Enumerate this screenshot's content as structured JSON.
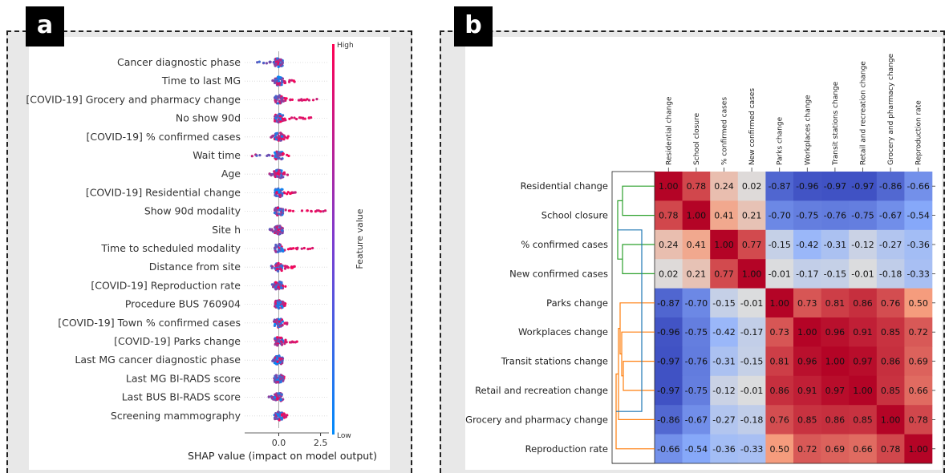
{
  "panel_a_letter": "a",
  "panel_b_letter": "b",
  "chart_data": [
    {
      "type": "scatter",
      "subtype": "shap-beeswarm",
      "features": [
        "Cancer diagnostic phase",
        "Time to last MG",
        "[COVID-19] Grocery and pharmacy change",
        "No show 90d",
        "[COVID-19] % confirmed cases",
        "Wait time",
        "Age",
        "[COVID-19] Residential change",
        "Show 90d modality",
        "Site h",
        "Time to scheduled modality",
        "Distance from site",
        "[COVID-19] Reproduction rate",
        "Procedure BUS 760904",
        "[COVID-19] Town % confirmed cases",
        "[COVID-19] Parks change",
        "Last MG cancer diagnostic phase",
        "Last MG BI-RADS score",
        "Last BUS BI-RADS score",
        "Screening mammography"
      ],
      "shap_ranges": [
        [
          -1.3,
          0.4
        ],
        [
          -0.5,
          1.0
        ],
        [
          -0.2,
          2.3
        ],
        [
          -0.2,
          2.0
        ],
        [
          -0.5,
          0.6
        ],
        [
          -1.6,
          0.8
        ],
        [
          -0.6,
          0.6
        ],
        [
          -0.3,
          1.0
        ],
        [
          -0.2,
          2.9
        ],
        [
          -0.6,
          0.3
        ],
        [
          -0.1,
          2.1
        ],
        [
          -0.7,
          1.0
        ],
        [
          -0.4,
          0.4
        ],
        [
          -0.2,
          0.4
        ],
        [
          -0.4,
          0.5
        ],
        [
          -0.3,
          1.1
        ],
        [
          -0.4,
          0.3
        ],
        [
          -0.3,
          0.4
        ],
        [
          -0.6,
          0.2
        ],
        [
          -0.3,
          0.6
        ]
      ],
      "x_ticks": [
        "0.0",
        "2.5"
      ],
      "x_tick_values": [
        0.0,
        2.5
      ],
      "xlim": [
        -1.8,
        3.0
      ],
      "xlabel": "SHAP value (impact on model output)",
      "colorbar_label": "Feature value",
      "colorbar_high": "High",
      "colorbar_low": "Low",
      "colors": {
        "high": "#ff0052",
        "low": "#008bfb"
      }
    },
    {
      "type": "heatmap",
      "subtype": "clustered-correlation-matrix",
      "labels": [
        "Residential change",
        "School closure",
        "% confirmed cases",
        "New confirmed cases",
        "Parks change",
        "Workplaces change",
        "Transit stations change",
        "Retail and recreation change",
        "Grocery and pharmacy change",
        "Reproduction rate"
      ],
      "matrix": [
        [
          1.0,
          0.78,
          0.24,
          0.02,
          -0.87,
          -0.96,
          -0.97,
          -0.97,
          -0.86,
          -0.66
        ],
        [
          0.78,
          1.0,
          0.41,
          0.21,
          -0.7,
          -0.75,
          -0.76,
          -0.75,
          -0.67,
          -0.54
        ],
        [
          0.24,
          0.41,
          1.0,
          0.77,
          -0.15,
          -0.42,
          -0.31,
          -0.12,
          -0.27,
          -0.36
        ],
        [
          0.02,
          0.21,
          0.77,
          1.0,
          -0.01,
          -0.17,
          -0.15,
          -0.01,
          -0.18,
          -0.33
        ],
        [
          -0.87,
          -0.7,
          -0.15,
          -0.01,
          1.0,
          0.73,
          0.81,
          0.86,
          0.76,
          0.5
        ],
        [
          -0.96,
          -0.75,
          -0.42,
          -0.17,
          0.73,
          1.0,
          0.96,
          0.91,
          0.85,
          0.72
        ],
        [
          -0.97,
          -0.76,
          -0.31,
          -0.15,
          0.81,
          0.96,
          1.0,
          0.97,
          0.86,
          0.69
        ],
        [
          -0.97,
          -0.75,
          -0.12,
          -0.01,
          0.86,
          0.91,
          0.97,
          1.0,
          0.85,
          0.66
        ],
        [
          -0.86,
          -0.67,
          -0.27,
          -0.18,
          0.76,
          0.85,
          0.86,
          0.85,
          1.0,
          0.78
        ],
        [
          -0.66,
          -0.54,
          -0.36,
          -0.33,
          0.5,
          0.72,
          0.69,
          0.66,
          0.78,
          1.0
        ]
      ],
      "cell_labels": [
        [
          "1.00",
          "0.78",
          "0.24",
          "0.02",
          "-0.87",
          "-0.96",
          "-0.97",
          "-0.97",
          "-0.86",
          "-0.66"
        ],
        [
          "0.78",
          "1.00",
          "0.41",
          "0.21",
          "-0.70",
          "-0.75",
          "-0.76",
          "-0.75",
          "-0.67",
          "-0.54"
        ],
        [
          "0.24",
          "0.41",
          "1.00",
          "0.77",
          "-0.15",
          "-0.42",
          "-0.31",
          "-0.12",
          "-0.27",
          "-0.36"
        ],
        [
          "0.02",
          "0.21",
          "0.77",
          "1.00",
          "-0.01",
          "-0.17",
          "-0.15",
          "-0.01",
          "-0.18",
          "-0.33"
        ],
        [
          "-0.87",
          "-0.70",
          "-0.15",
          "-0.01",
          "1.00",
          "0.73",
          "0.81",
          "0.86",
          "0.76",
          "0.50"
        ],
        [
          "-0.96",
          "-0.75",
          "-0.42",
          "-0.17",
          "0.73",
          "1.00",
          "0.96",
          "0.91",
          "0.85",
          "0.72"
        ],
        [
          "-0.97",
          "-0.76",
          "-0.31",
          "-0.15",
          "0.81",
          "0.96",
          "1.00",
          "0.97",
          "0.86",
          "0.69"
        ],
        [
          "-0.97",
          "-0.75",
          "-0.12",
          "-0.01",
          "0.86",
          "0.91",
          "0.97",
          "1.00",
          "0.85",
          "0.66"
        ],
        [
          "-0.86",
          "-0.67",
          "-0.27",
          "-0.18",
          "0.76",
          "0.85",
          "0.86",
          "0.85",
          "1.00",
          "0.78"
        ],
        [
          "-0.66",
          "-0.54",
          "-0.36",
          "-0.33",
          "0.50",
          "0.72",
          "0.69",
          "0.66",
          "0.78",
          "1.00"
        ]
      ],
      "value_range": [
        -1,
        1
      ],
      "dendrogram_clusters": [
        {
          "members": [
            0,
            1,
            2,
            3
          ],
          "color": "#2ca02c"
        },
        {
          "members": [
            4,
            5,
            6,
            7,
            8,
            9
          ],
          "color": "#ff7f0e"
        }
      ],
      "dendrogram_root_color": "#1f77b4"
    }
  ]
}
